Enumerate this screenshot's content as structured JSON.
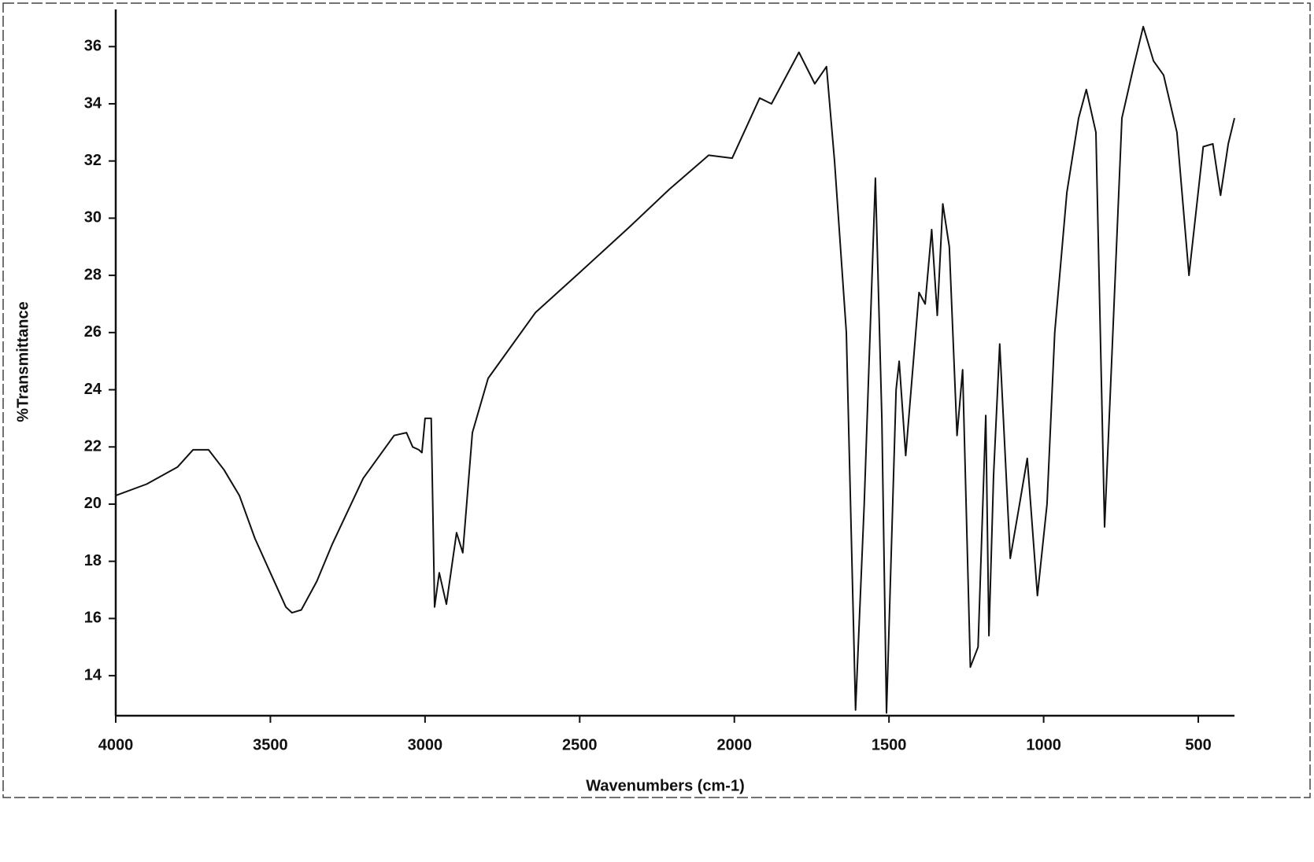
{
  "chart_data": {
    "type": "line",
    "xlabel": "Wavenumbers (cm-1)",
    "ylabel": "%Transmittance",
    "xlim": [
      4000,
      383
    ],
    "ylim": [
      12.6,
      37.3
    ],
    "xticks": [
      4000,
      3500,
      3000,
      2500,
      2000,
      1500,
      1000,
      500
    ],
    "yticks": [
      14,
      16,
      18,
      20,
      22,
      24,
      26,
      28,
      30,
      32,
      34,
      36
    ],
    "series": [
      {
        "color": "#111111",
        "x": [
          4000,
          3900,
          3800,
          3750,
          3700,
          3650,
          3600,
          3550,
          3500,
          3450,
          3430,
          3400,
          3350,
          3300,
          3200,
          3100,
          3060,
          3040,
          3020,
          3010,
          3000,
          2980,
          2969,
          2954,
          2931,
          2898,
          2878,
          2847,
          2796,
          2643,
          2500,
          2338,
          2211,
          2083,
          2007,
          1918,
          1880,
          1791,
          1740,
          1702,
          1676,
          1638,
          1608,
          1580,
          1544,
          1523,
          1508,
          1477,
          1467,
          1446,
          1403,
          1383,
          1362,
          1344,
          1326,
          1305,
          1280,
          1262,
          1237,
          1212,
          1187,
          1177,
          1162,
          1142,
          1108,
          1078,
          1053,
          1020,
          989,
          964,
          925,
          887,
          862,
          831,
          803,
          780,
          747,
          709,
          678,
          645,
          612,
          569,
          530,
          484,
          453,
          428,
          403,
          383
        ],
        "values": [
          20.3,
          20.7,
          21.3,
          21.9,
          21.9,
          21.2,
          20.3,
          18.8,
          17.6,
          16.4,
          16.2,
          16.3,
          17.3,
          18.6,
          20.9,
          22.4,
          22.5,
          22.0,
          21.9,
          21.8,
          23.0,
          23.0,
          16.4,
          17.6,
          16.5,
          19.0,
          18.3,
          22.5,
          24.4,
          26.7,
          28.1,
          29.7,
          31.0,
          32.2,
          32.1,
          34.2,
          34.0,
          35.8,
          34.7,
          35.3,
          32.0,
          26.0,
          12.8,
          20.0,
          31.4,
          23.0,
          12.7,
          24.0,
          25.0,
          21.7,
          27.4,
          27.0,
          29.6,
          26.6,
          30.5,
          29.0,
          22.4,
          24.7,
          14.3,
          15.0,
          23.1,
          15.4,
          21.0,
          25.6,
          18.1,
          20.0,
          21.6,
          16.8,
          20.0,
          26.0,
          30.9,
          33.5,
          34.5,
          33.0,
          19.2,
          25.0,
          33.5,
          35.3,
          36.7,
          35.5,
          35.0,
          33.0,
          28.0,
          32.5,
          32.6,
          30.8,
          32.6,
          33.5
        ]
      }
    ]
  }
}
